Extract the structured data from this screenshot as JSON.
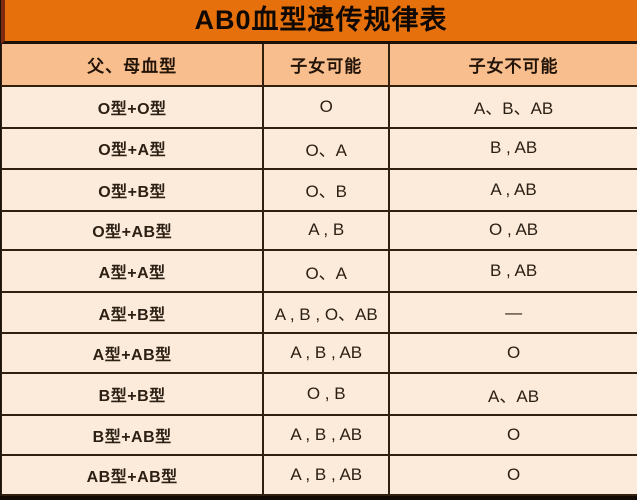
{
  "title": "AB0血型遗传规律表",
  "table": {
    "headers": [
      "父、母血型",
      "子女可能",
      "子女不可能"
    ],
    "rows": [
      {
        "parents": "O型+O型",
        "possible": "O",
        "impossible": "A、B、AB"
      },
      {
        "parents": "O型+A型",
        "possible": "O、A",
        "impossible": "B , AB"
      },
      {
        "parents": "O型+B型",
        "possible": "O、B",
        "impossible": "A , AB"
      },
      {
        "parents": "O型+AB型",
        "possible": "A , B",
        "impossible": "O , AB"
      },
      {
        "parents": "A型+A型",
        "possible": "O、A",
        "impossible": "B , AB"
      },
      {
        "parents": "A型+B型",
        "possible": "A , B , O、AB",
        "impossible": "—"
      },
      {
        "parents": "A型+AB型",
        "possible": "A , B , AB",
        "impossible": "O"
      },
      {
        "parents": "B型+B型",
        "possible": "O , B",
        "impossible": "A、AB"
      },
      {
        "parents": "B型+AB型",
        "possible": "A , B , AB",
        "impossible": "O"
      },
      {
        "parents": "AB型+AB型",
        "possible": "A , B , AB",
        "impossible": "O"
      }
    ]
  },
  "chart_data": {
    "type": "table",
    "title": "AB0血型遗传规律表",
    "columns": [
      "父、母血型",
      "子女可能",
      "子女不可能"
    ],
    "rows": [
      [
        "O型+O型",
        "O",
        "A、B、AB"
      ],
      [
        "O型+A型",
        "O、A",
        "B , AB"
      ],
      [
        "O型+B型",
        "O、B",
        "A , AB"
      ],
      [
        "O型+AB型",
        "A , B",
        "O , AB"
      ],
      [
        "A型+A型",
        "O、A",
        "B , AB"
      ],
      [
        "A型+B型",
        "A , B , O、AB",
        "—"
      ],
      [
        "A型+AB型",
        "A , B , AB",
        "O"
      ],
      [
        "B型+B型",
        "O , B",
        "A、AB"
      ],
      [
        "B型+AB型",
        "A , B , AB",
        "O"
      ],
      [
        "AB型+AB型",
        "A , B , AB",
        "O"
      ]
    ]
  },
  "colors": {
    "title_bg": "#e5700c",
    "header_bg": "#f9be8d",
    "row_bg": "#fcebdb",
    "grid_line": "#32200f",
    "title_text": "#100802",
    "header_text": "#231409",
    "cell_text": "#2c2014",
    "left_accent": "#7f2b0d"
  }
}
